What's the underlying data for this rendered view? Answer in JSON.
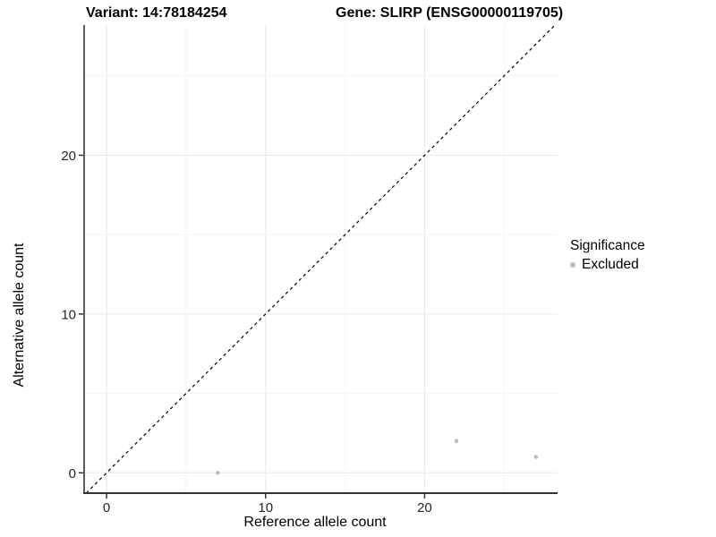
{
  "titles": {
    "variant": "Variant: 14:78184254",
    "gene": "Gene: SLIRP (ENSG00000119705)"
  },
  "chart_data": {
    "type": "scatter",
    "title": "Variant: 14:78184254 / Gene: SLIRP (ENSG00000119705)",
    "xlabel": "Reference allele count",
    "ylabel": "Alternative allele count",
    "xlim": [
      -1.41,
      28.36
    ],
    "ylim": [
      -1.28,
      28.2
    ],
    "x_ticks": [
      0,
      10,
      20
    ],
    "x_minor_ticks": [
      5,
      15,
      25
    ],
    "y_ticks": [
      0,
      10,
      20
    ],
    "y_minor_ticks": [
      5,
      15,
      25
    ],
    "grid": true,
    "series": [
      {
        "name": "Excluded",
        "color": "#bdbdbd",
        "points": [
          [
            7,
            0
          ],
          [
            22,
            2
          ],
          [
            27,
            1
          ]
        ]
      }
    ],
    "reference_line": {
      "type": "identity-diagonal",
      "style": "dashed",
      "color": "#000000"
    },
    "legend": {
      "title": "Significance",
      "position": "right",
      "entries": [
        {
          "label": "Excluded",
          "color": "#bdbdbd"
        }
      ]
    }
  },
  "colors": {
    "grid_major": "#e8e8e8",
    "grid_minor": "#f4f4f4",
    "axis_line": "#333333",
    "tick_label": "#262626",
    "point": "#bdbdbd"
  }
}
